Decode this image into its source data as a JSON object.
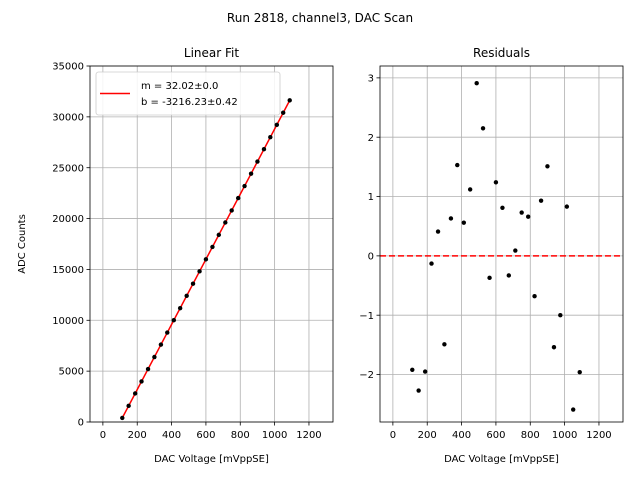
{
  "figure": {
    "suptitle": "Run 2818, channel3, DAC Scan"
  },
  "chart_data": [
    {
      "type": "scatter",
      "title": "Linear Fit",
      "xlabel": "DAC Voltage [mVppSE]",
      "ylabel": "ADC Counts",
      "xlim": [
        -75,
        1340
      ],
      "ylim": [
        0,
        35000
      ],
      "grid": true,
      "xticks": [
        0,
        200,
        400,
        600,
        800,
        1000,
        1200
      ],
      "yticks": [
        0,
        5000,
        10000,
        15000,
        20000,
        25000,
        30000,
        35000
      ],
      "legend": {
        "placement": "upper-left",
        "entries": [
          {
            "label": "m = 32.02±0.0",
            "color": "#ff0000"
          },
          {
            "label": "b = -3216.23±0.42",
            "color": "#ff0000"
          }
        ]
      },
      "fit": {
        "slope": 32.02,
        "intercept": -3216.23,
        "x_range": [
          113,
          1088
        ],
        "color": "#ff0000"
      },
      "points": {
        "color": "#000000",
        "x": [
          113,
          150,
          188,
          225,
          263,
          300,
          338,
          375,
          413,
          450,
          488,
          525,
          563,
          600,
          638,
          675,
          713,
          750,
          788,
          825,
          863,
          900,
          938,
          975,
          1013,
          1050,
          1088
        ]
      }
    },
    {
      "type": "scatter",
      "title": "Residuals",
      "xlabel": "DAC Voltage [mVppSE]",
      "ylabel": "",
      "xlim": [
        -75,
        1340
      ],
      "ylim": [
        -2.8,
        3.2
      ],
      "grid": true,
      "xticks": [
        0,
        200,
        400,
        600,
        800,
        1000,
        1200
      ],
      "yticks": [
        -2,
        -1,
        0,
        1,
        2,
        3
      ],
      "ytick_labels": [
        "−2",
        "−1",
        "0",
        "1",
        "2",
        "3"
      ],
      "zero_line": {
        "y": 0,
        "color": "#ff0000",
        "style": "dashed"
      },
      "points": {
        "color": "#000000",
        "x": [
          113,
          150,
          188,
          225,
          263,
          300,
          338,
          375,
          413,
          450,
          488,
          525,
          563,
          600,
          638,
          675,
          713,
          750,
          788,
          825,
          863,
          900,
          938,
          975,
          1013,
          1050,
          1088
        ],
        "y": [
          -1.92,
          -2.27,
          -1.95,
          -0.13,
          0.41,
          -1.49,
          0.63,
          1.53,
          0.56,
          1.12,
          2.91,
          2.15,
          -0.37,
          1.24,
          0.81,
          -0.33,
          0.09,
          0.73,
          0.66,
          -0.68,
          0.93,
          1.51,
          -1.54,
          -1.0,
          0.83,
          -2.59,
          -1.96
        ]
      }
    }
  ]
}
